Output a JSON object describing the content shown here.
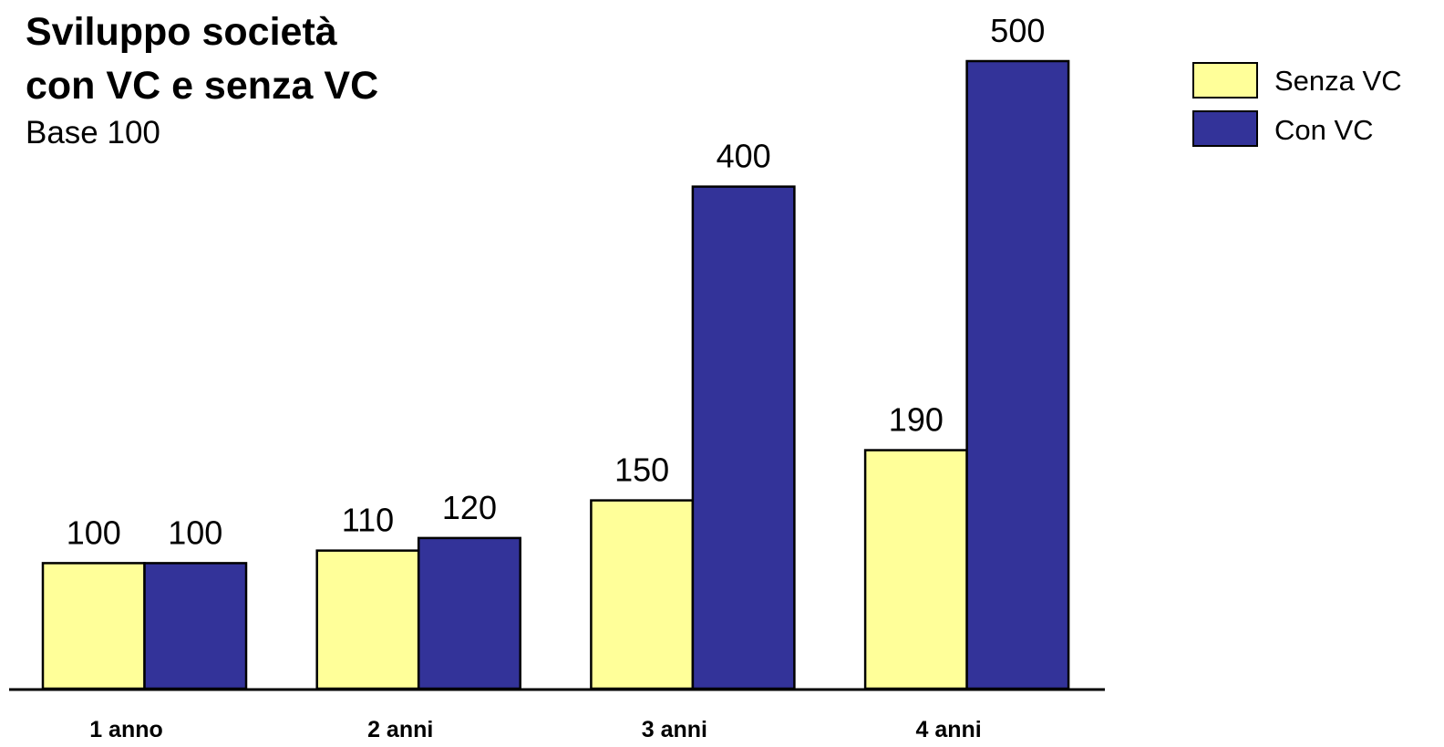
{
  "chart_data": {
    "type": "bar",
    "title_lines": [
      "Sviluppo società",
      "con VC e senza VC"
    ],
    "subtitle": "Base 100",
    "categories": [
      "1 anno",
      "2 anni",
      "3 anni",
      "4 anni"
    ],
    "series": [
      {
        "name": "Senza VC",
        "values": [
          100,
          110,
          150,
          190
        ],
        "color": "#FFFF99"
      },
      {
        "name": "Con VC",
        "values": [
          100,
          120,
          400,
          500
        ],
        "color": "#333399"
      }
    ],
    "ylim": [
      0,
      500
    ],
    "grid": false,
    "legend_position": "top-right"
  }
}
